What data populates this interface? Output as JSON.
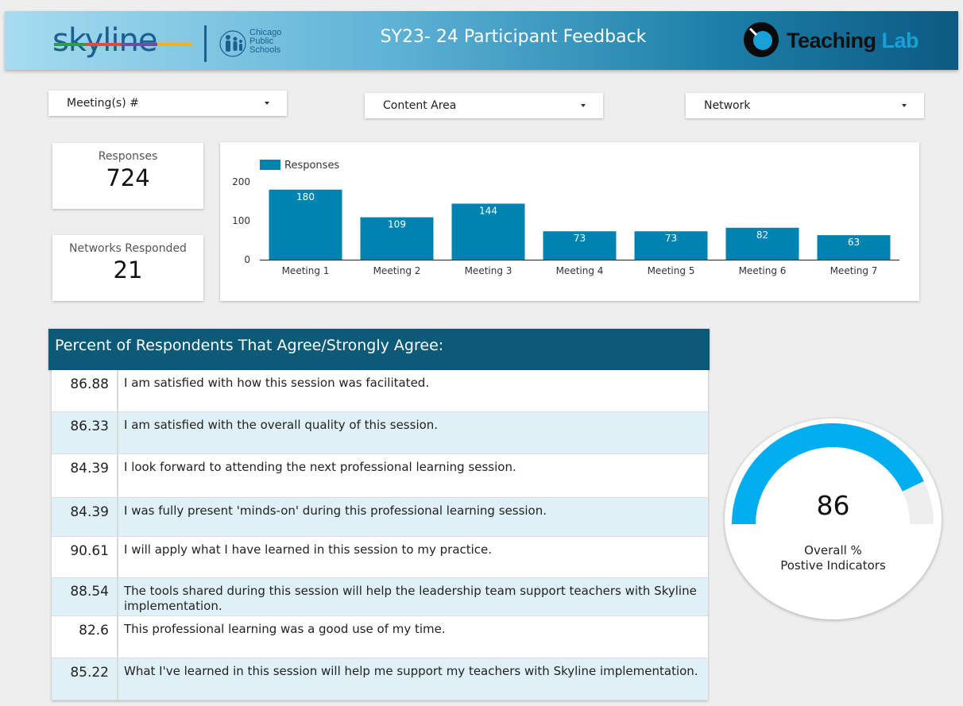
{
  "header": {
    "title": "SY23- 24 Participant Feedback",
    "skyline_logo_text": "skyline",
    "cps_logo_lines": [
      "Chicago",
      "Public",
      "Schools"
    ],
    "teaching_lab_word1": "Teaching",
    "teaching_lab_word2": "Lab"
  },
  "filters": {
    "meetings": "Meeting(s) #",
    "content_area": "Content Area",
    "network": "Network"
  },
  "kpis": {
    "responses_label": "Responses",
    "responses_value": "724",
    "networks_label": "Networks Responded",
    "networks_value": "21"
  },
  "chart_data": {
    "type": "bar",
    "legend": "Responses",
    "categories": [
      "Meeting 1",
      "Meeting 2",
      "Meeting 3",
      "Meeting 4",
      "Meeting 5",
      "Meeting 6",
      "Meeting 7"
    ],
    "values": [
      180,
      109,
      144,
      73,
      73,
      82,
      63
    ],
    "yticks": [
      0,
      100,
      200
    ],
    "ylim": [
      0,
      200
    ],
    "bar_color": "#0083b0"
  },
  "table": {
    "title": "Percent of Respondents That Agree/Strongly Agree:",
    "rows": [
      {
        "value": "86.88",
        "text": "I am satisfied with how this session was facilitated."
      },
      {
        "value": "86.33",
        "text": "I am satisfied with the overall quality of this session."
      },
      {
        "value": "84.39",
        "text": "I look forward to attending the next professional learning session."
      },
      {
        "value": "84.39",
        "text": "I was fully present 'minds-on' during this professional learning session."
      },
      {
        "value": "90.61",
        "text": "I will apply what I have learned in this session to my practice."
      },
      {
        "value": "88.54",
        "text": "The tools shared during this session will help the leadership team support teachers with Skyline implementation."
      },
      {
        "value": "82.6",
        "text": "This professional learning was a good use of my time."
      },
      {
        "value": "85.22",
        "text": "What I've learned in this session will help me support my teachers with Skyline implementation."
      }
    ]
  },
  "gauge": {
    "value": "86",
    "fraction": 0.86,
    "label_line1": "Overall %",
    "label_line2": "Postive Indicators",
    "fill_color": "#00aeef",
    "track_color": "#eeeeee"
  }
}
